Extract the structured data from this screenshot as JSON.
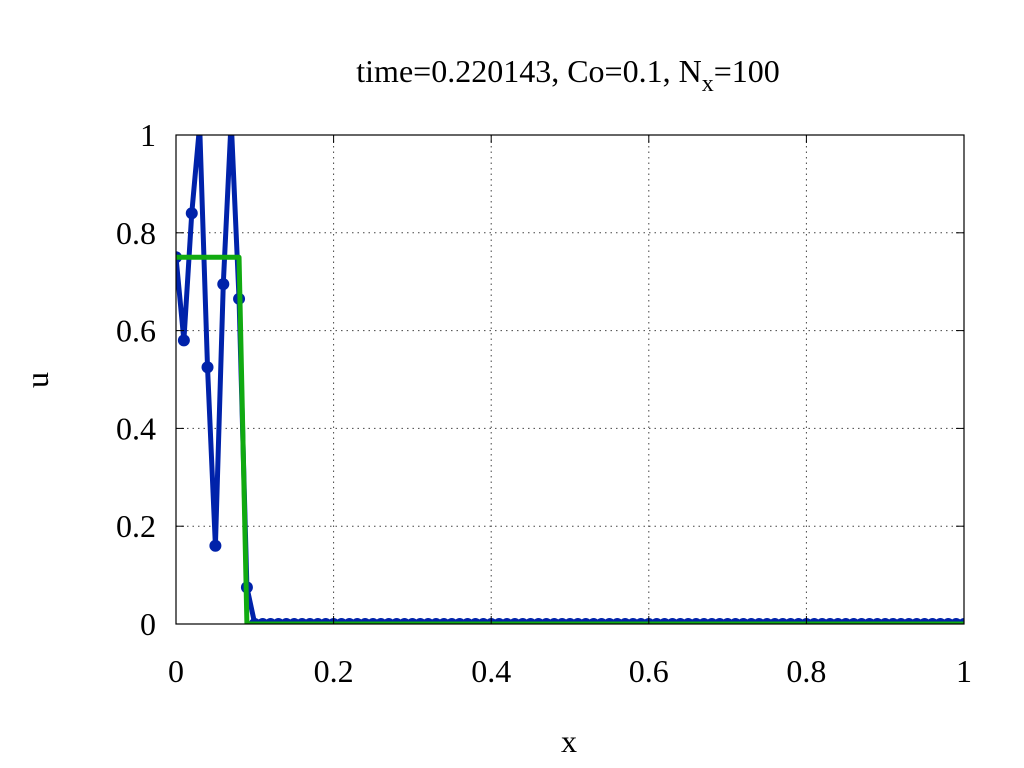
{
  "chart_data": {
    "type": "line",
    "title": {
      "main": "time=0.220143, Co=0.1, N",
      "subscript": "x",
      "suffix": "=100"
    },
    "xlabel": "x",
    "ylabel": "u",
    "xlim": [
      0,
      1
    ],
    "ylim": [
      0,
      1
    ],
    "xticks": [
      0,
      0.2,
      0.4,
      0.6,
      0.8,
      1
    ],
    "xtick_labels": [
      "0",
      "0.2",
      "0.4",
      "0.6",
      "0.8",
      "1"
    ],
    "yticks": [
      0,
      0.2,
      0.4,
      0.6,
      0.8,
      1
    ],
    "ytick_labels": [
      "0",
      "0.2",
      "0.4",
      "0.6",
      "0.8",
      "1"
    ],
    "grid": true,
    "series": [
      {
        "color": "#0022aa",
        "markers": true,
        "x": [
          0,
          0.01,
          0.02,
          0.03,
          0.04,
          0.05,
          0.06,
          0.07,
          0.08,
          0.09,
          0.1,
          0.11,
          0.12,
          0.13,
          0.14,
          0.15,
          0.16,
          0.17,
          0.18,
          0.19,
          0.2,
          0.21,
          0.22,
          0.23,
          0.24,
          0.25,
          0.26,
          0.27,
          0.28,
          0.29,
          0.3,
          0.31,
          0.32,
          0.33,
          0.34,
          0.35,
          0.36,
          0.37,
          0.38,
          0.39,
          0.4,
          0.41,
          0.42,
          0.43,
          0.44,
          0.45,
          0.46,
          0.47,
          0.48,
          0.49,
          0.5,
          0.51,
          0.52,
          0.53,
          0.54,
          0.55,
          0.56,
          0.57,
          0.58,
          0.59,
          0.6,
          0.61,
          0.62,
          0.63,
          0.64,
          0.65,
          0.66,
          0.67,
          0.68,
          0.69,
          0.7,
          0.71,
          0.72,
          0.73,
          0.74,
          0.75,
          0.76,
          0.77,
          0.78,
          0.79,
          0.8,
          0.81,
          0.82,
          0.83,
          0.84,
          0.85,
          0.86,
          0.87,
          0.88,
          0.89,
          0.9,
          0.91,
          0.92,
          0.93,
          0.94,
          0.95,
          0.96,
          0.97,
          0.98,
          0.99,
          1
        ],
        "y": [
          0.75,
          0.58,
          0.84,
          1.02,
          0.525,
          0.16,
          0.695,
          1.03,
          0.665,
          0.075,
          0,
          0,
          0,
          0,
          0,
          0,
          0,
          0,
          0,
          0,
          0,
          0,
          0,
          0,
          0,
          0,
          0,
          0,
          0,
          0,
          0,
          0,
          0,
          0,
          0,
          0,
          0,
          0,
          0,
          0,
          0,
          0,
          0,
          0,
          0,
          0,
          0,
          0,
          0,
          0,
          0,
          0,
          0,
          0,
          0,
          0,
          0,
          0,
          0,
          0,
          0,
          0,
          0,
          0,
          0,
          0,
          0,
          0,
          0,
          0,
          0,
          0,
          0,
          0,
          0,
          0,
          0,
          0,
          0,
          0,
          0,
          0,
          0,
          0,
          0,
          0,
          0,
          0,
          0,
          0,
          0,
          0,
          0,
          0,
          0,
          0,
          0,
          0,
          0,
          0,
          0
        ]
      },
      {
        "color": "#11aa11",
        "markers": false,
        "x": [
          0,
          0.08,
          0.09,
          1
        ],
        "y": [
          0.75,
          0.75,
          0,
          0
        ]
      }
    ]
  }
}
